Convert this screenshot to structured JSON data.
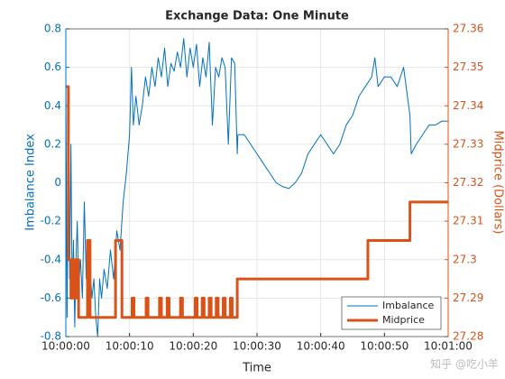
{
  "chart_data": {
    "type": "line",
    "title": "Exchange Data: One Minute",
    "xlabel": "Time",
    "ylabel": "Imbalance Index",
    "y2label": "Midprice (Dollars)",
    "watermark": "知乎 @吃小羊",
    "xlim": [
      0,
      60
    ],
    "xticks": [
      {
        "value": 0,
        "label": "10:00:00"
      },
      {
        "value": 10,
        "label": "10:00:10"
      },
      {
        "value": 20,
        "label": "10:00:20"
      },
      {
        "value": 30,
        "label": "10:00:30"
      },
      {
        "value": 40,
        "label": "10:00:40"
      },
      {
        "value": 50,
        "label": "10:00:50"
      },
      {
        "value": 60,
        "label": "10:01:00"
      }
    ],
    "ylim": [
      -0.8,
      0.8
    ],
    "yticks": [
      -0.8,
      -0.6,
      -0.4,
      -0.2,
      0,
      0.2,
      0.4,
      0.6,
      0.8
    ],
    "y2lim": [
      27.28,
      27.36
    ],
    "y2ticks": [
      27.28,
      27.29,
      27.3,
      27.31,
      27.32,
      27.33,
      27.34,
      27.35,
      27.36
    ],
    "grid": true,
    "legend": "lower right",
    "series": [
      {
        "name": "Imbalance",
        "color": "#0072bd",
        "width": 1,
        "x": [
          0,
          0.2,
          0.4,
          0.6,
          0.8,
          1.0,
          1.2,
          1.4,
          1.6,
          1.8,
          2.0,
          2.3,
          2.6,
          2.9,
          3.2,
          3.5,
          3.8,
          4.1,
          4.4,
          4.7,
          5.0,
          5.3,
          5.6,
          6,
          6.5,
          7,
          7.5,
          8,
          8.5,
          9,
          9.5,
          10,
          10.3,
          10.6,
          11,
          11.5,
          12,
          12.5,
          13,
          13.5,
          14,
          14.5,
          15,
          15.5,
          16,
          16.5,
          17,
          17.5,
          18,
          18.5,
          19,
          19.5,
          20,
          20.5,
          21,
          21.5,
          22,
          22.5,
          23,
          23.5,
          24,
          24.5,
          25,
          25.5,
          26,
          26.5,
          26.9,
          27,
          28,
          29,
          30,
          31,
          32,
          33,
          34,
          35,
          36,
          37,
          38,
          39,
          40,
          41,
          42,
          43,
          44,
          45,
          46,
          47,
          48,
          48.5,
          49,
          50,
          51,
          52,
          53,
          54,
          54.2,
          55,
          56,
          57,
          58,
          59,
          60
        ],
        "values": [
          0.5,
          -0.7,
          0.3,
          -0.5,
          0.2,
          -0.6,
          -0.3,
          -0.75,
          -0.4,
          -0.2,
          -0.55,
          -0.4,
          -0.6,
          -0.1,
          -0.5,
          -0.3,
          -0.45,
          -0.6,
          -0.5,
          -0.7,
          -0.8,
          -0.5,
          -0.6,
          -0.45,
          -0.55,
          -0.35,
          -0.5,
          -0.25,
          -0.35,
          -0.1,
          0.05,
          0.25,
          0.6,
          0.3,
          0.45,
          0.3,
          0.4,
          0.55,
          0.45,
          0.6,
          0.5,
          0.65,
          0.55,
          0.7,
          0.5,
          0.62,
          0.58,
          0.68,
          0.6,
          0.75,
          0.55,
          0.7,
          0.6,
          0.72,
          0.5,
          0.65,
          0.55,
          0.73,
          0.3,
          0.6,
          0.55,
          0.65,
          0.6,
          0.2,
          0.65,
          0.62,
          0.15,
          0.25,
          0.25,
          0.2,
          0.15,
          0.1,
          0.05,
          0.0,
          -0.02,
          -0.03,
          0.0,
          0.05,
          0.15,
          0.2,
          0.25,
          0.2,
          0.15,
          0.2,
          0.3,
          0.35,
          0.45,
          0.5,
          0.55,
          0.65,
          0.5,
          0.55,
          0.55,
          0.5,
          0.6,
          0.35,
          0.15,
          0.2,
          0.25,
          0.3,
          0.3,
          0.32,
          0.32
        ]
      },
      {
        "name": "Midprice",
        "color": "#d95319",
        "width": 3,
        "axis": "y2",
        "x": [
          0,
          0.4,
          0.4,
          0.8,
          0.8,
          1.0,
          1.0,
          1.3,
          1.3,
          1.6,
          1.6,
          2.0,
          2.0,
          3.4,
          3.4,
          3.8,
          3.8,
          7.8,
          7.8,
          8.8,
          8.8,
          10.4,
          10.4,
          10.7,
          10.7,
          12.6,
          12.6,
          12.9,
          12.9,
          14.7,
          14.7,
          15.0,
          15.0,
          15.9,
          15.9,
          16.2,
          16.2,
          18.0,
          18.0,
          18.3,
          18.3,
          20.3,
          20.3,
          20.6,
          20.6,
          21.4,
          21.4,
          21.7,
          21.7,
          22.5,
          22.5,
          22.8,
          22.8,
          23.6,
          23.6,
          23.9,
          23.9,
          24.7,
          24.7,
          25.0,
          25.0,
          25.8,
          25.8,
          26.1,
          26.1,
          26.9,
          26.9,
          47.4,
          47.4,
          54.0,
          54.0,
          60
        ],
        "values": [
          27.345,
          27.345,
          27.3,
          27.3,
          27.29,
          27.29,
          27.3,
          27.3,
          27.29,
          27.29,
          27.3,
          27.3,
          27.285,
          27.285,
          27.305,
          27.305,
          27.285,
          27.285,
          27.305,
          27.305,
          27.285,
          27.285,
          27.29,
          27.29,
          27.285,
          27.285,
          27.29,
          27.29,
          27.285,
          27.285,
          27.29,
          27.29,
          27.285,
          27.285,
          27.29,
          27.29,
          27.285,
          27.285,
          27.29,
          27.29,
          27.285,
          27.285,
          27.29,
          27.29,
          27.285,
          27.285,
          27.29,
          27.29,
          27.285,
          27.285,
          27.29,
          27.29,
          27.285,
          27.285,
          27.29,
          27.29,
          27.285,
          27.285,
          27.29,
          27.29,
          27.285,
          27.285,
          27.29,
          27.29,
          27.285,
          27.285,
          27.295,
          27.295,
          27.305,
          27.305,
          27.315,
          27.315
        ]
      }
    ]
  }
}
